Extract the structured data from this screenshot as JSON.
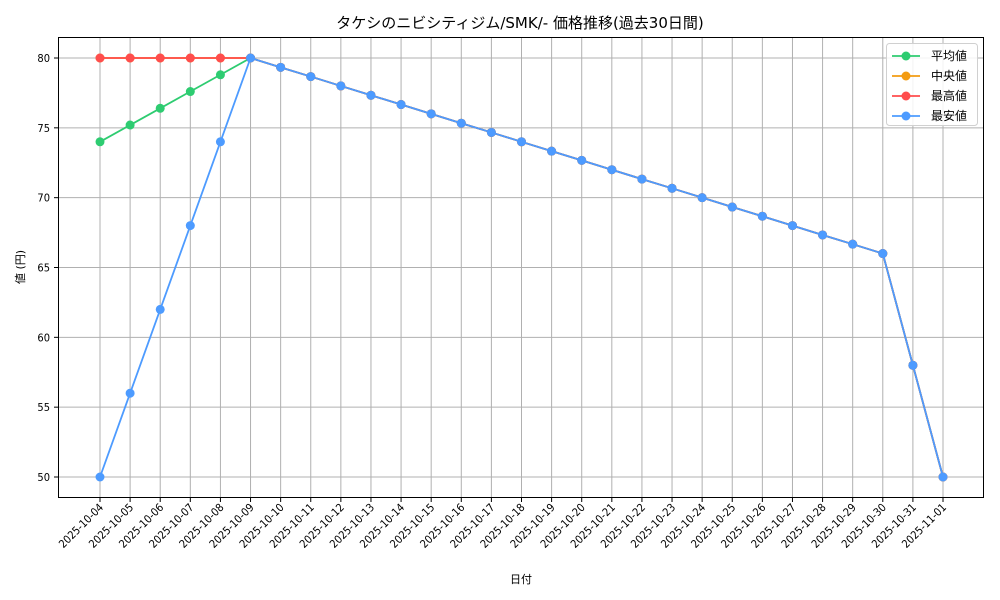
{
  "chart_data": {
    "type": "line",
    "title": "タケシのニビシティジム/SMK/- 価格推移(過去30日間)",
    "xlabel": "日付",
    "ylabel": "値 (円)",
    "ylim": [
      48.5,
      81.5
    ],
    "yticks": [
      50,
      55,
      60,
      65,
      70,
      75,
      80
    ],
    "grid": true,
    "legend_position": "upper right",
    "x": [
      "2025-10-04",
      "2025-10-05",
      "2025-10-06",
      "2025-10-07",
      "2025-10-08",
      "2025-10-09",
      "2025-10-10",
      "2025-10-11",
      "2025-10-12",
      "2025-10-13",
      "2025-10-14",
      "2025-10-15",
      "2025-10-16",
      "2025-10-17",
      "2025-10-18",
      "2025-10-19",
      "2025-10-20",
      "2025-10-21",
      "2025-10-22",
      "2025-10-23",
      "2025-10-24",
      "2025-10-25",
      "2025-10-26",
      "2025-10-27",
      "2025-10-28",
      "2025-10-29",
      "2025-10-30",
      "2025-10-31",
      "2025-11-01"
    ],
    "series": [
      {
        "name": "平均値",
        "color": "#2ecc71",
        "values": [
          74,
          75.2,
          76.4,
          77.6,
          78.8,
          80,
          79.33,
          78.67,
          78,
          77.33,
          76.67,
          76,
          75.33,
          74.67,
          74,
          73.33,
          72.67,
          72,
          71.33,
          70.67,
          70,
          69.33,
          68.67,
          68,
          67.33,
          66.67,
          66,
          58,
          50
        ]
      },
      {
        "name": "中央値",
        "color": "#f39c12",
        "values": [
          80,
          80,
          80,
          80,
          80,
          80,
          79.33,
          78.67,
          78,
          77.33,
          76.67,
          76,
          75.33,
          74.67,
          74,
          73.33,
          72.67,
          72,
          71.33,
          70.67,
          70,
          69.33,
          68.67,
          68,
          67.33,
          66.67,
          66,
          58,
          50
        ]
      },
      {
        "name": "最高値",
        "color": "#ff4d4d",
        "values": [
          80,
          80,
          80,
          80,
          80,
          80,
          79.33,
          78.67,
          78,
          77.33,
          76.67,
          76,
          75.33,
          74.67,
          74,
          73.33,
          72.67,
          72,
          71.33,
          70.67,
          70,
          69.33,
          68.67,
          68,
          67.33,
          66.67,
          66,
          58,
          50
        ]
      },
      {
        "name": "最安値",
        "color": "#4d9bff",
        "values": [
          50,
          56,
          62,
          68,
          74,
          80,
          79.33,
          78.67,
          78,
          77.33,
          76.67,
          76,
          75.33,
          74.67,
          74,
          73.33,
          72.67,
          72,
          71.33,
          70.67,
          70,
          69.33,
          68.67,
          68,
          67.33,
          66.67,
          66,
          58,
          50
        ]
      }
    ]
  }
}
